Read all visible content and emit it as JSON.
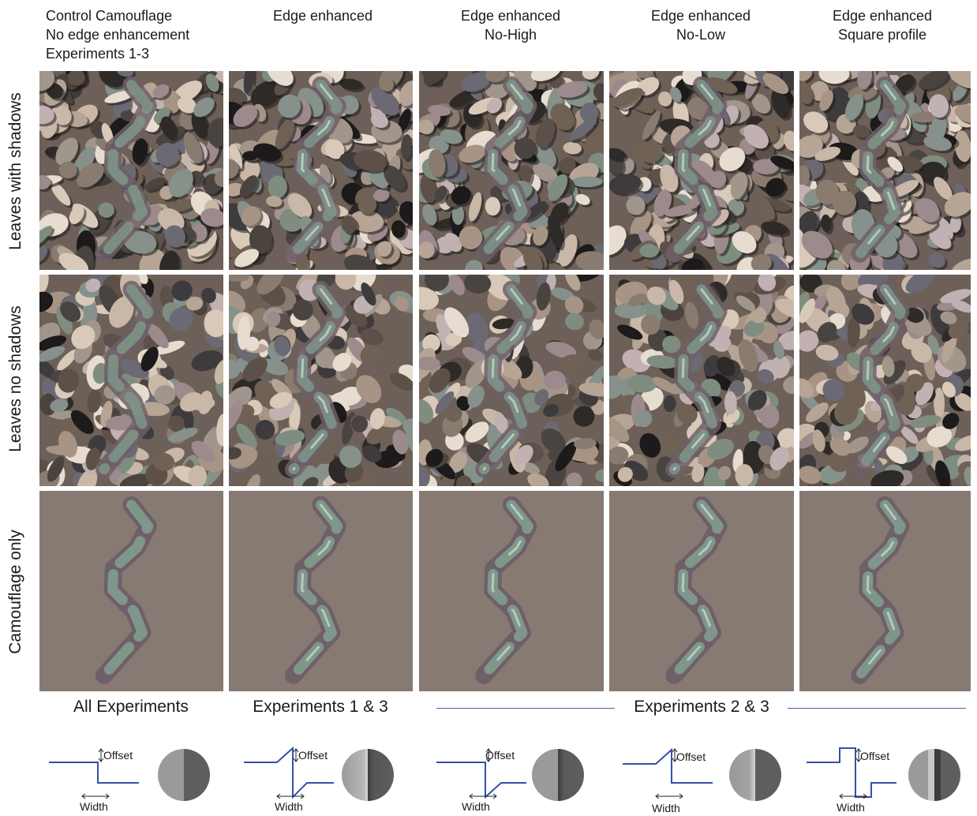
{
  "columns": [
    {
      "title": "Control  Camouflage\nNo edge enhancement\nExperiments 1-3",
      "profile": "step"
    },
    {
      "title": "Edge enhanced",
      "profile": "both"
    },
    {
      "title": "Edge enhanced\nNo-High",
      "profile": "low"
    },
    {
      "title": "Edge enhanced\nNo-Low",
      "profile": "high"
    },
    {
      "title": "Edge enhanced\nSquare profile",
      "profile": "square"
    }
  ],
  "rows": [
    {
      "label": "Leaves with shadows",
      "type": "leaves-shadow"
    },
    {
      "label": "Leaves no shadows",
      "type": "leaves-noshadow"
    },
    {
      "label": "Camouflage only",
      "type": "camo"
    }
  ],
  "experiments": {
    "all": "All Experiments",
    "exp13": "Experiments 1 & 3",
    "exp23": "Experiments 2 & 3"
  },
  "profile_labels": {
    "offset": "Offset",
    "width": "Width"
  },
  "colors": {
    "background_gray": "#867a72",
    "target_green": "#7f968a",
    "target_purple": "#6e5f68",
    "profile_line": "#3550a8",
    "rule": "#4a5fb0"
  },
  "leaf_palette": [
    "#8a7b70",
    "#a89484",
    "#5c5048",
    "#2e2a28",
    "#c9b8a8",
    "#7e8d7f",
    "#9c8a8c",
    "#d8c9b9",
    "#3d3b3d",
    "#6b6a74",
    "#b6a495",
    "#4a4440",
    "#e6dcd0",
    "#85918a",
    "#a1968c",
    "#1c1a1a",
    "#c2b1b3",
    "#706155"
  ]
}
